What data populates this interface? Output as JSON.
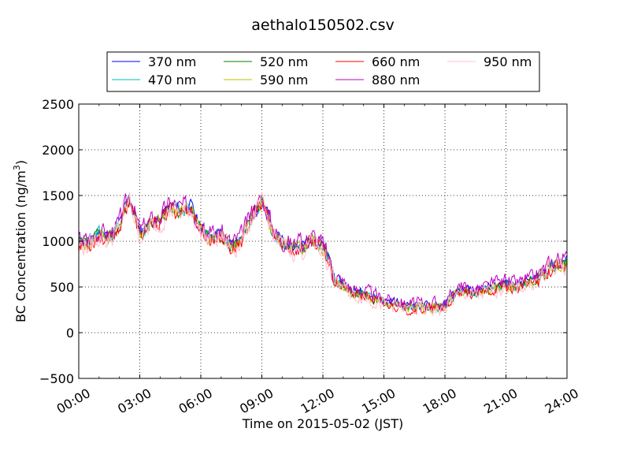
{
  "chart_data": {
    "type": "line",
    "title": "aethalo150502.csv",
    "xlabel": "Time on 2015-05-02 (JST)",
    "ylabel": "BC Concentration (ng/m",
    "ylabel_sup": "3",
    "ylabel_close": ")",
    "xlim": [
      0,
      24
    ],
    "ylim": [
      -500,
      2500
    ],
    "grid": true,
    "grid_style": "dotted",
    "legend_position": "top",
    "x_tick_values": [
      0,
      3,
      6,
      9,
      12,
      15,
      18,
      21,
      24
    ],
    "x_tick_labels": [
      "00:00",
      "03:00",
      "06:00",
      "09:00",
      "12:00",
      "15:00",
      "18:00",
      "21:00",
      "24:00"
    ],
    "y_ticks": [
      -500,
      0,
      500,
      1000,
      1500,
      2000,
      2500
    ],
    "y_tick_labels": [
      "−500",
      "0",
      "500",
      "1000",
      "1500",
      "2000",
      "2500"
    ],
    "base_profile": {
      "x": [
        0,
        0.5,
        1.0,
        1.5,
        2.0,
        2.5,
        3.0,
        3.5,
        4.0,
        4.5,
        5.0,
        5.5,
        6.0,
        6.5,
        7.0,
        7.5,
        8.0,
        8.5,
        9.0,
        9.3,
        9.6,
        10.0,
        10.5,
        11.0,
        11.5,
        12.0,
        12.3,
        12.6,
        13.0,
        13.5,
        14.0,
        14.5,
        15.0,
        15.5,
        16.0,
        16.5,
        17.0,
        17.5,
        18.0,
        18.3,
        18.6,
        19.0,
        19.5,
        20.0,
        20.5,
        21.0,
        21.5,
        22.0,
        22.5,
        23.0,
        23.5,
        24.0
      ],
      "y": [
        1000,
        1000,
        1100,
        1050,
        1200,
        1500,
        1100,
        1200,
        1250,
        1400,
        1350,
        1400,
        1150,
        1050,
        1100,
        950,
        1050,
        1300,
        1450,
        1300,
        1100,
        1000,
        950,
        950,
        1050,
        950,
        800,
        600,
        550,
        450,
        450,
        400,
        350,
        350,
        300,
        300,
        300,
        300,
        300,
        400,
        450,
        480,
        450,
        480,
        520,
        550,
        520,
        570,
        600,
        700,
        800,
        780
      ]
    },
    "series": [
      {
        "name": "370 nm",
        "color": "#0000ff",
        "offset": 0,
        "noise": 90,
        "seed": 11
      },
      {
        "name": "470 nm",
        "color": "#00bfbf",
        "offset": -15,
        "noise": 100,
        "seed": 23
      },
      {
        "name": "520 nm",
        "color": "#008000",
        "offset": -25,
        "noise": 105,
        "seed": 37
      },
      {
        "name": "590 nm",
        "color": "#bfbf00",
        "offset": -30,
        "noise": 110,
        "seed": 41
      },
      {
        "name": "660 nm",
        "color": "#ff0000",
        "offset": -40,
        "noise": 120,
        "seed": 53
      },
      {
        "name": "880 nm",
        "color": "#bf00bf",
        "offset": 20,
        "noise": 150,
        "seed": 67
      },
      {
        "name": "950 nm",
        "color": "#ffc0cb",
        "offset": -50,
        "noise": 160,
        "seed": 79
      }
    ]
  }
}
